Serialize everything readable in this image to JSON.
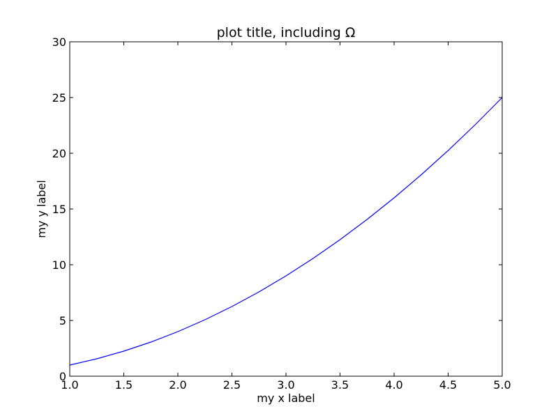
{
  "chart_data": {
    "type": "line",
    "title": "plot title, including Ω",
    "xlabel": "my x label",
    "ylabel": "my y label",
    "xlim": [
      1.0,
      5.0
    ],
    "ylim": [
      0,
      30
    ],
    "xticks": [
      1.0,
      1.5,
      2.0,
      2.5,
      3.0,
      3.5,
      4.0,
      4.5,
      5.0
    ],
    "xtick_labels": [
      "1.0",
      "1.5",
      "2.0",
      "2.5",
      "3.0",
      "3.5",
      "4.0",
      "4.5",
      "5.0"
    ],
    "yticks": [
      0,
      5,
      10,
      15,
      20,
      25,
      30
    ],
    "ytick_labels": [
      "0",
      "5",
      "10",
      "15",
      "20",
      "25",
      "30"
    ],
    "grid": false,
    "legend": "none",
    "series": [
      {
        "color": "#0000ff",
        "x": [
          1.0,
          1.25,
          1.5,
          1.75,
          2.0,
          2.25,
          2.5,
          2.75,
          3.0,
          3.25,
          3.5,
          3.75,
          4.0,
          4.25,
          4.5,
          4.75,
          5.0
        ],
        "y": [
          1.0,
          1.5625,
          2.25,
          3.0625,
          4.0,
          5.0625,
          6.25,
          7.5625,
          9.0,
          10.5625,
          12.25,
          14.0625,
          16.0,
          18.0625,
          20.25,
          22.5625,
          25.0
        ]
      }
    ]
  }
}
